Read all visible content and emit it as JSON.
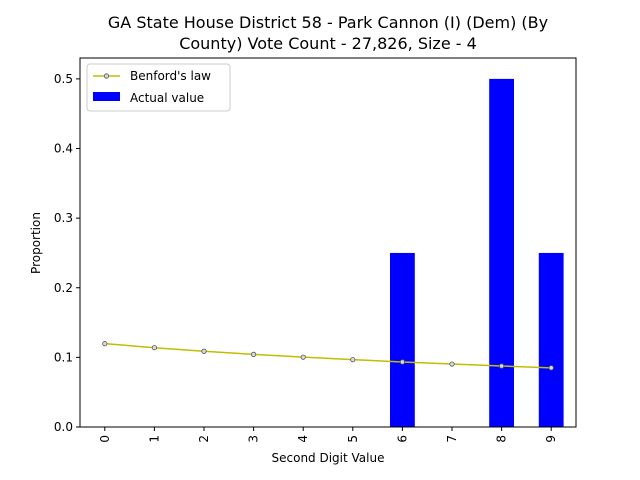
{
  "chart_data": {
    "type": "bar",
    "title_lines": [
      "GA State House District 58 - Park Cannon (I) (Dem) (By",
      "County) Vote Count - 27,826, Size - 4"
    ],
    "xlabel": "Second Digit Value",
    "ylabel": "Proportion",
    "categories": [
      "0",
      "1",
      "2",
      "3",
      "4",
      "5",
      "6",
      "7",
      "8",
      "9"
    ],
    "ylim": [
      0,
      0.53
    ],
    "yticks": [
      "0.0",
      "0.1",
      "0.2",
      "0.3",
      "0.4",
      "0.5"
    ],
    "grid": false,
    "legend_position": "top-left",
    "series": [
      {
        "name": "Actual value",
        "kind": "bar",
        "color": "#0000ff",
        "values": [
          0,
          0,
          0,
          0,
          0,
          0,
          0.25,
          0,
          0.5,
          0.25
        ]
      },
      {
        "name": "Benford's law",
        "kind": "line",
        "color": "#bfbf00",
        "values": [
          0.1197,
          0.1139,
          0.1088,
          0.1043,
          0.1003,
          0.0967,
          0.0934,
          0.0904,
          0.0876,
          0.085
        ]
      }
    ]
  }
}
